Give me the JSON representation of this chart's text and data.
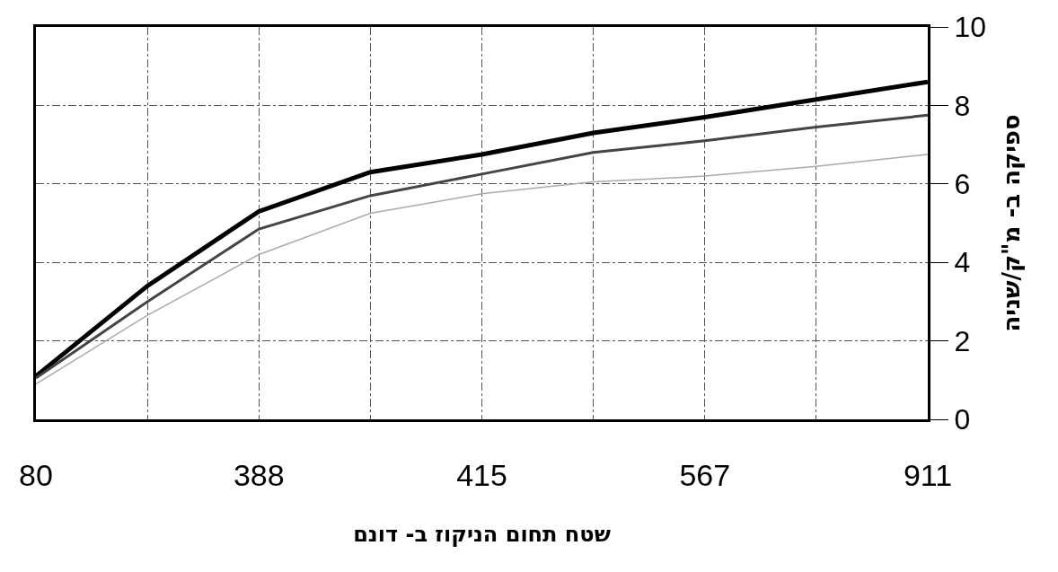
{
  "chart_data": {
    "type": "line",
    "xlabel": "שטח תחום הניקוז ב- דונם",
    "ylabel": "ספיקה ב- מ\"ק/שניה",
    "categories": [
      "80",
      null,
      "388",
      null,
      "415",
      null,
      "567",
      null,
      "911"
    ],
    "series": [
      {
        "color": "#000000",
        "values": [
          1.1,
          3.4,
          5.3,
          6.3,
          6.75,
          7.3,
          7.7,
          8.15,
          8.6
        ]
      },
      {
        "color": "#444444",
        "values": [
          1.05,
          3.0,
          4.85,
          5.7,
          6.25,
          6.8,
          7.1,
          7.45,
          7.75
        ]
      },
      {
        "color": "#aaaaaa",
        "values": [
          0.9,
          2.65,
          4.2,
          5.25,
          5.75,
          6.05,
          6.2,
          6.45,
          6.75
        ]
      }
    ],
    "ylim": [
      0,
      10
    ],
    "yticks": [
      0,
      2,
      4,
      6,
      8,
      10
    ],
    "grid": true,
    "marker": "none",
    "line_style": "solid"
  }
}
